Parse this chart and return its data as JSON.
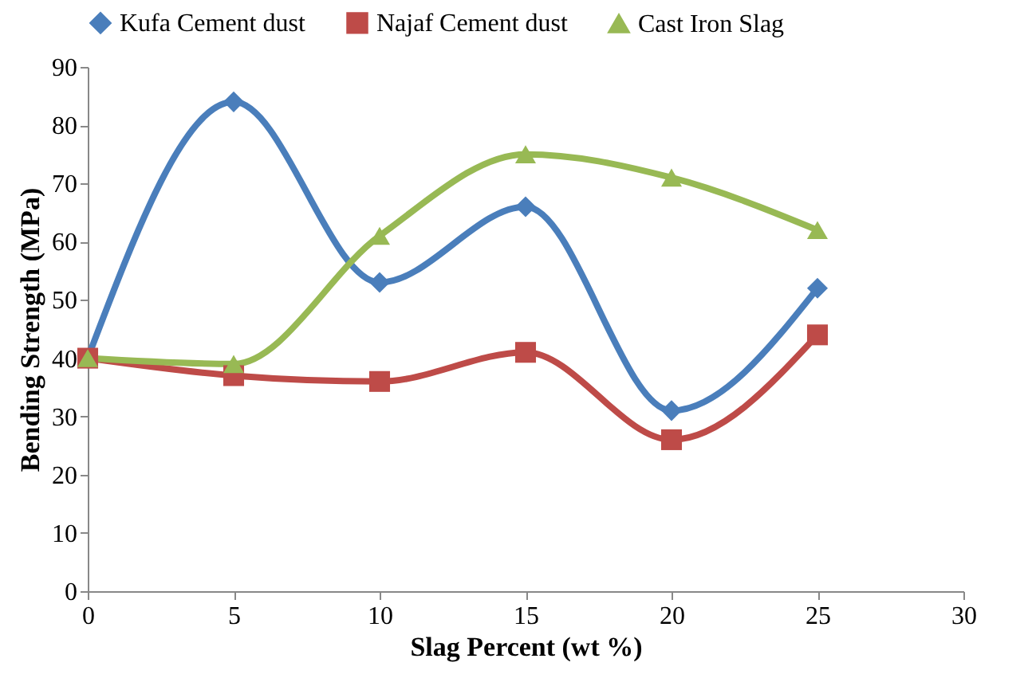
{
  "chart_data": {
    "type": "line",
    "xlabel": "Slag Percent (wt %)",
    "ylabel": "Bending Strength (MPa)",
    "x": [
      0,
      5,
      10,
      15,
      20,
      25
    ],
    "series": [
      {
        "name": "Kufa Cement dust",
        "color": "#4a7ebb",
        "marker": "diamond",
        "values": [
          40,
          84,
          53,
          66,
          31,
          52
        ]
      },
      {
        "name": "Najaf Cement dust",
        "color": "#be4b48",
        "marker": "square",
        "values": [
          40,
          37,
          36,
          41,
          26,
          44
        ]
      },
      {
        "name": "Cast Iron Slag",
        "color": "#98b954",
        "marker": "triangle",
        "values": [
          40,
          39,
          61,
          75,
          71,
          62
        ]
      }
    ],
    "xlim": [
      0,
      30
    ],
    "xticks": [
      0,
      5,
      10,
      15,
      20,
      25,
      30
    ],
    "ylim": [
      0,
      90
    ],
    "yticks": [
      0,
      10,
      20,
      30,
      40,
      50,
      60,
      70,
      80,
      90
    ],
    "grid": false,
    "legend": "top",
    "line_style": "solid"
  }
}
